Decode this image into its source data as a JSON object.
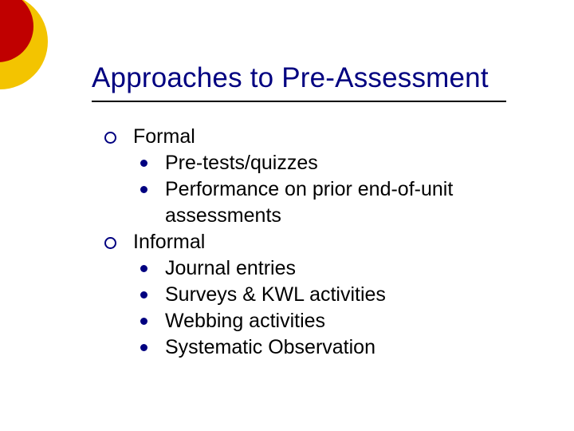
{
  "slide": {
    "title": "Approaches to Pre-Assessment",
    "title_color": "#000080",
    "title_fontsize": 35,
    "underline_color": "#000000",
    "body_fontsize": 25,
    "bullet_color": "#000080",
    "background_color": "#ffffff",
    "decorations": {
      "outer_circle_color": "#f3c400",
      "inner_circle_color": "#c00000"
    },
    "items": [
      {
        "label": "Formal",
        "sub": [
          {
            "label": "Pre-tests/quizzes"
          },
          {
            "label": "Performance on prior end-of-unit assessments"
          }
        ]
      },
      {
        "label": "Informal",
        "sub": [
          {
            "label": "Journal entries"
          },
          {
            "label": "Surveys & KWL activities"
          },
          {
            "label": "Webbing activities"
          },
          {
            "label": "Systematic Observation"
          }
        ]
      }
    ]
  }
}
